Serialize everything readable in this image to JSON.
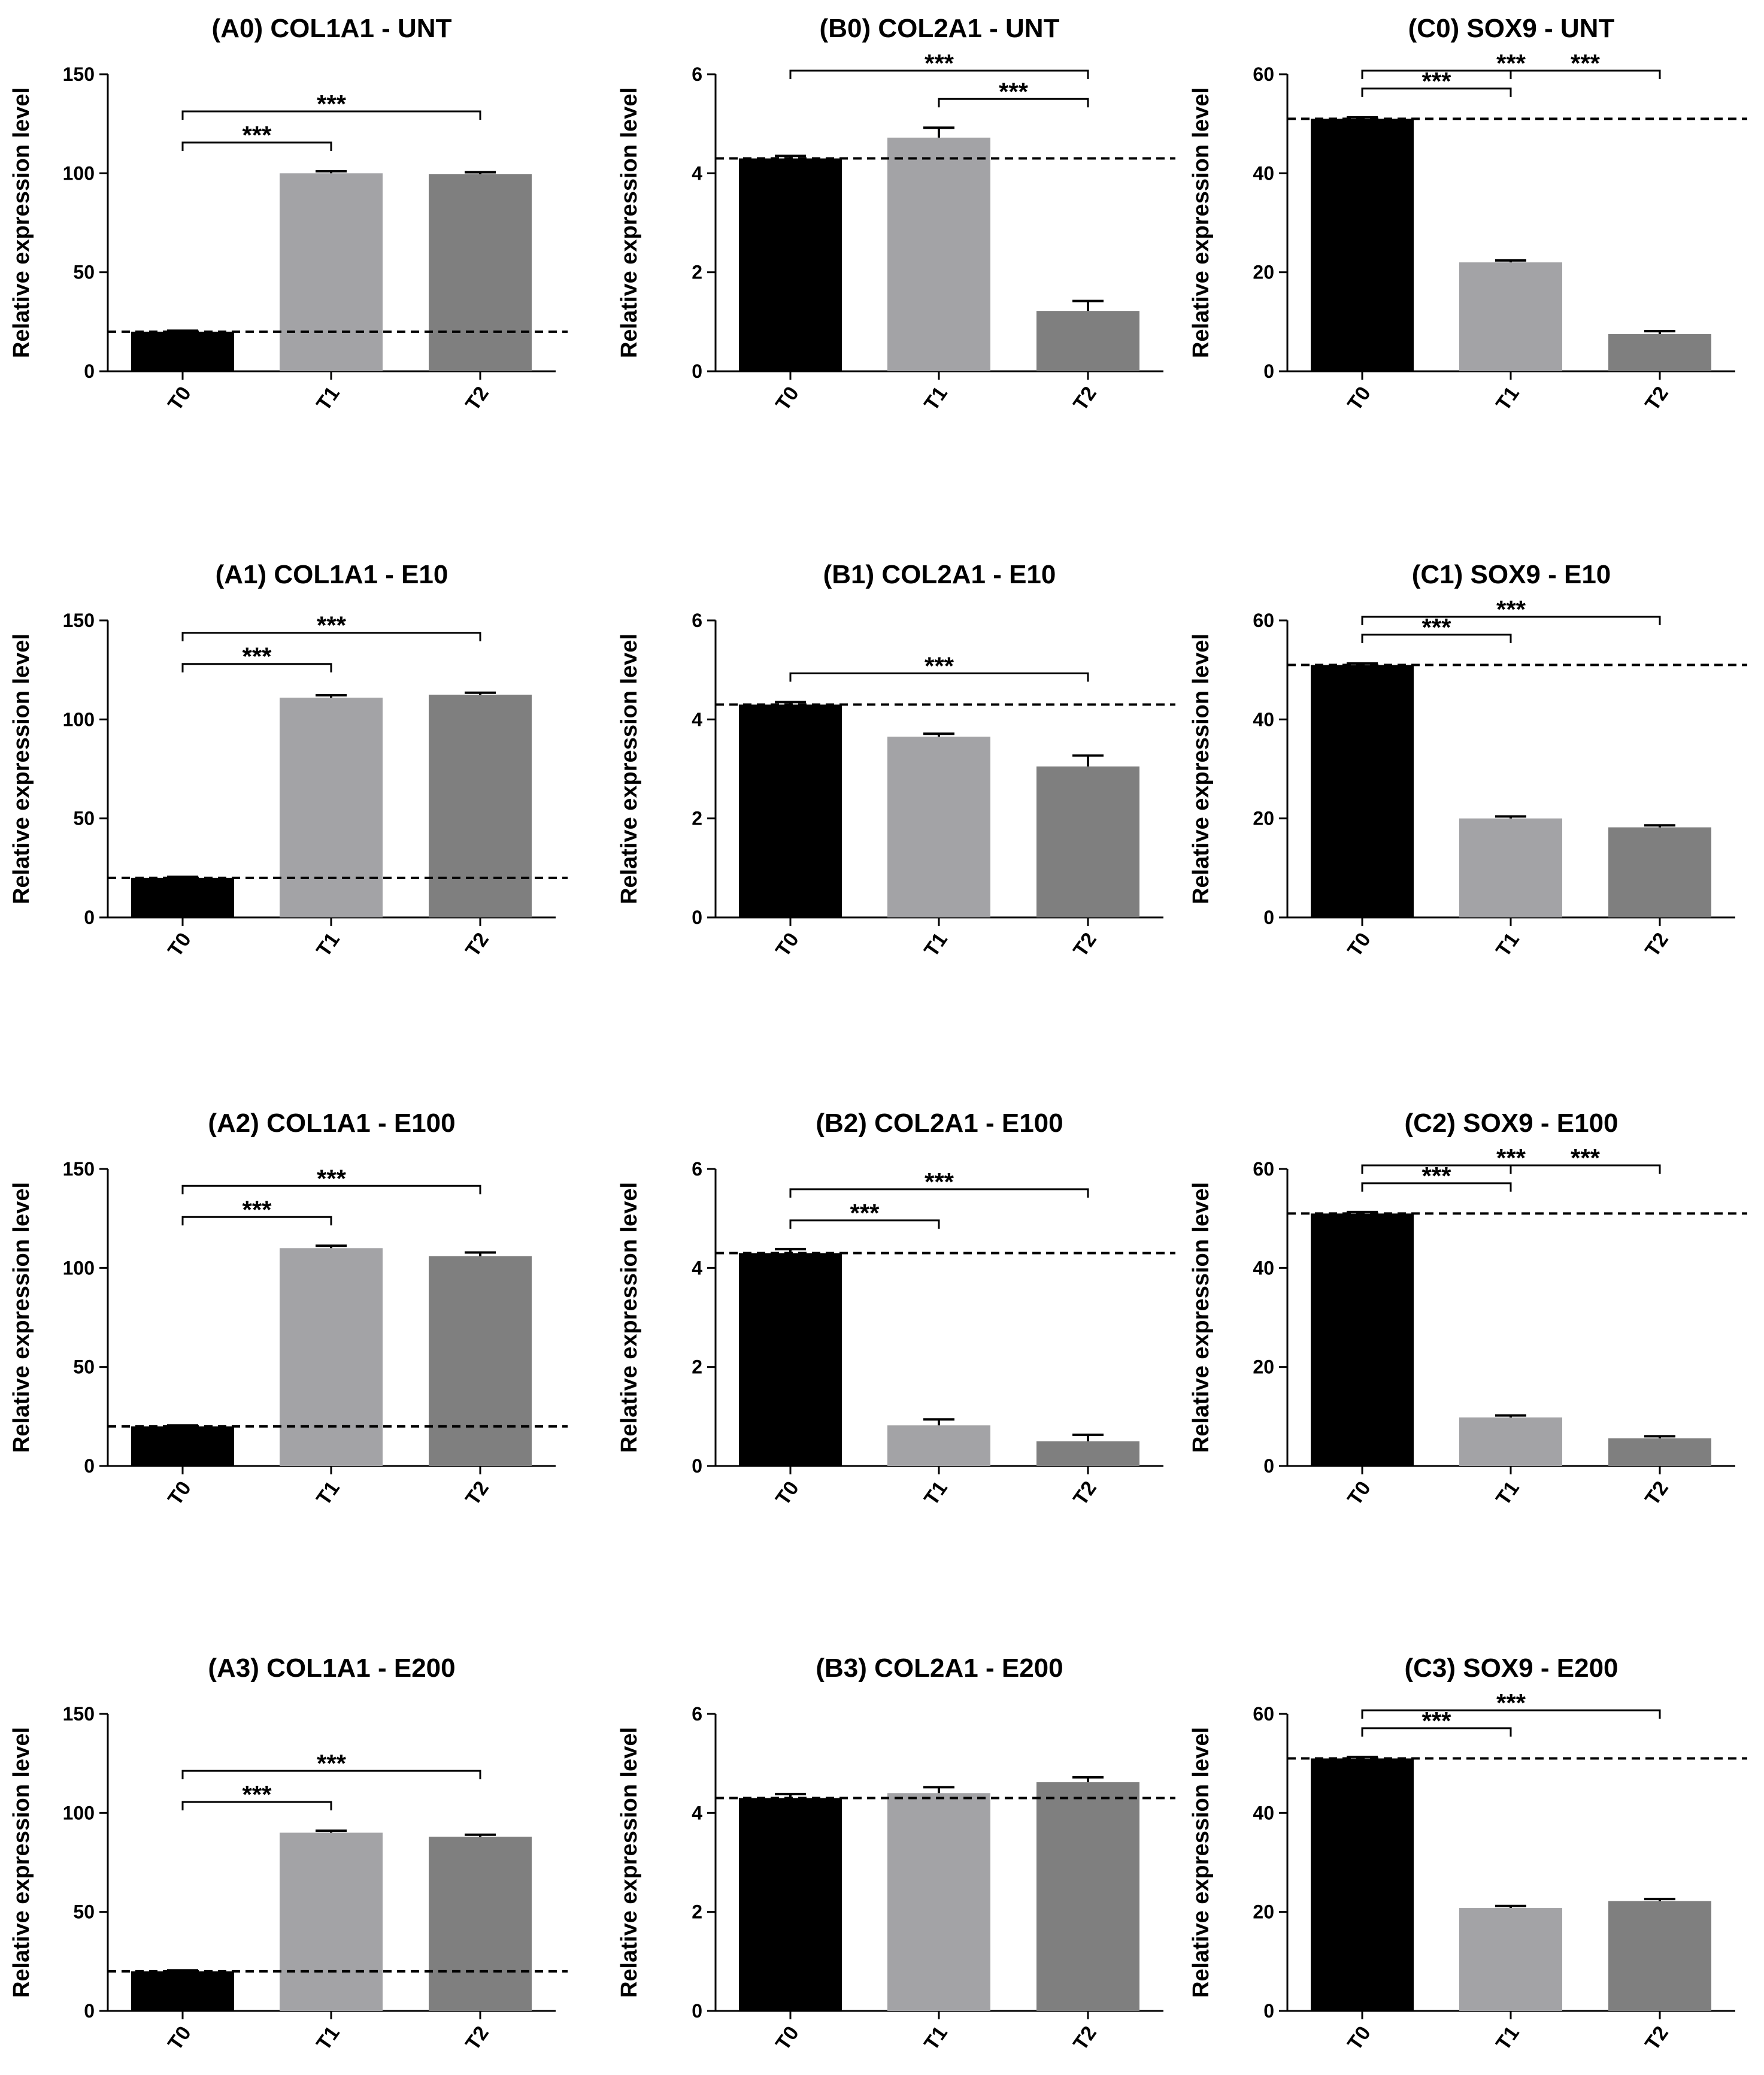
{
  "chart_data": [
    {
      "type": "bar",
      "title": "(A0) COL1A1 - UNT",
      "ylabel": "Relative expression level",
      "categories": [
        "T0",
        "T1",
        "T2"
      ],
      "values": [
        20,
        100,
        99.5
      ],
      "errors": [
        0.5,
        1,
        1
      ],
      "ylim": [
        0,
        150
      ],
      "yticks": [
        0,
        50,
        100,
        150
      ],
      "baseline": 20,
      "bar_colors": [
        "#000000",
        "#a3a3a6",
        "#7f7f7f"
      ],
      "significance": [
        {
          "from": 0,
          "to": 1,
          "label": "***"
        },
        {
          "from": 0,
          "to": 2,
          "label": "***"
        }
      ]
    },
    {
      "type": "bar",
      "title": "(B0) COL2A1 - UNT",
      "ylabel": "Relative expression level",
      "categories": [
        "T0",
        "T1",
        "T2"
      ],
      "values": [
        4.3,
        4.72,
        1.22
      ],
      "errors": [
        0.05,
        0.2,
        0.2
      ],
      "ylim": [
        0,
        6
      ],
      "yticks": [
        0,
        2,
        4,
        6
      ],
      "baseline": 4.3,
      "bar_colors": [
        "#000000",
        "#a3a3a6",
        "#7f7f7f"
      ],
      "significance": [
        {
          "from": 0,
          "to": 2,
          "label": "***"
        },
        {
          "from": 1,
          "to": 2,
          "label": "***"
        }
      ]
    },
    {
      "type": "bar",
      "title": "(C0) SOX9 - UNT",
      "ylabel": "Relative expression level",
      "categories": [
        "T0",
        "T1",
        "T2"
      ],
      "values": [
        51,
        22,
        7.5
      ],
      "errors": [
        0.3,
        0.4,
        0.6
      ],
      "ylim": [
        0,
        60
      ],
      "yticks": [
        0,
        20,
        40,
        60
      ],
      "baseline": 51,
      "bar_colors": [
        "#000000",
        "#a3a3a6",
        "#7f7f7f"
      ],
      "significance": [
        {
          "from": 0,
          "to": 1,
          "label": "***"
        },
        {
          "from": 0,
          "to": 2,
          "label": "***"
        },
        {
          "from": 1,
          "to": 2,
          "label": "***"
        }
      ]
    },
    {
      "type": "bar",
      "title": "(A1) COL1A1 - E10",
      "ylabel": "Relative expression level",
      "categories": [
        "T0",
        "T1",
        "T2"
      ],
      "values": [
        20,
        111,
        112.5
      ],
      "errors": [
        0.5,
        1.2,
        1
      ],
      "ylim": [
        0,
        150
      ],
      "yticks": [
        0,
        50,
        100,
        150
      ],
      "baseline": 20,
      "bar_colors": [
        "#000000",
        "#a3a3a6",
        "#7f7f7f"
      ],
      "significance": [
        {
          "from": 0,
          "to": 1,
          "label": "***"
        },
        {
          "from": 0,
          "to": 2,
          "label": "***"
        }
      ]
    },
    {
      "type": "bar",
      "title": "(B1) COL2A1 - E10",
      "ylabel": "Relative expression level",
      "categories": [
        "T0",
        "T1",
        "T2"
      ],
      "values": [
        4.3,
        3.65,
        3.05
      ],
      "errors": [
        0.05,
        0.06,
        0.22
      ],
      "ylim": [
        0,
        6
      ],
      "yticks": [
        0,
        2,
        4,
        6
      ],
      "baseline": 4.3,
      "bar_colors": [
        "#000000",
        "#a3a3a6",
        "#7f7f7f"
      ],
      "significance": [
        {
          "from": 0,
          "to": 2,
          "label": "***"
        }
      ]
    },
    {
      "type": "bar",
      "title": "(C1) SOX9 - E10",
      "ylabel": "Relative expression level",
      "categories": [
        "T0",
        "T1",
        "T2"
      ],
      "values": [
        51,
        20,
        18.2
      ],
      "errors": [
        0.3,
        0.4,
        0.4
      ],
      "ylim": [
        0,
        60
      ],
      "yticks": [
        0,
        20,
        40,
        60
      ],
      "baseline": 51,
      "bar_colors": [
        "#000000",
        "#a3a3a6",
        "#7f7f7f"
      ],
      "significance": [
        {
          "from": 0,
          "to": 1,
          "label": "***"
        },
        {
          "from": 0,
          "to": 2,
          "label": "***"
        }
      ]
    },
    {
      "type": "bar",
      "title": "(A2) COL1A1 - E100",
      "ylabel": "Relative expression level",
      "categories": [
        "T0",
        "T1",
        "T2"
      ],
      "values": [
        20,
        110,
        106
      ],
      "errors": [
        0.5,
        1.2,
        1.8
      ],
      "ylim": [
        0,
        150
      ],
      "yticks": [
        0,
        50,
        100,
        150
      ],
      "baseline": 20,
      "bar_colors": [
        "#000000",
        "#a3a3a6",
        "#7f7f7f"
      ],
      "significance": [
        {
          "from": 0,
          "to": 1,
          "label": "***"
        },
        {
          "from": 0,
          "to": 2,
          "label": "***"
        }
      ]
    },
    {
      "type": "bar",
      "title": "(B2) COL2A1 - E100",
      "ylabel": "Relative expression level",
      "categories": [
        "T0",
        "T1",
        "T2"
      ],
      "values": [
        4.3,
        0.82,
        0.5
      ],
      "errors": [
        0.08,
        0.12,
        0.13
      ],
      "ylim": [
        0,
        6
      ],
      "yticks": [
        0,
        2,
        4,
        6
      ],
      "baseline": 4.3,
      "bar_colors": [
        "#000000",
        "#a3a3a6",
        "#7f7f7f"
      ],
      "significance": [
        {
          "from": 0,
          "to": 1,
          "label": "***"
        },
        {
          "from": 0,
          "to": 2,
          "label": "***"
        }
      ]
    },
    {
      "type": "bar",
      "title": "(C2) SOX9 - E100",
      "ylabel": "Relative expression level",
      "categories": [
        "T0",
        "T1",
        "T2"
      ],
      "values": [
        51,
        9.8,
        5.6
      ],
      "errors": [
        0.3,
        0.4,
        0.4
      ],
      "ylim": [
        0,
        60
      ],
      "yticks": [
        0,
        20,
        40,
        60
      ],
      "baseline": 51,
      "bar_colors": [
        "#000000",
        "#a3a3a6",
        "#7f7f7f"
      ],
      "significance": [
        {
          "from": 0,
          "to": 1,
          "label": "***"
        },
        {
          "from": 0,
          "to": 2,
          "label": "***"
        },
        {
          "from": 1,
          "to": 2,
          "label": "***"
        }
      ]
    },
    {
      "type": "bar",
      "title": "(A3) COL1A1 - E200",
      "ylabel": "Relative expression level",
      "categories": [
        "T0",
        "T1",
        "T2"
      ],
      "values": [
        20,
        90,
        88
      ],
      "errors": [
        0.5,
        1,
        1
      ],
      "ylim": [
        0,
        150
      ],
      "yticks": [
        0,
        50,
        100,
        150
      ],
      "baseline": 20,
      "bar_colors": [
        "#000000",
        "#a3a3a6",
        "#7f7f7f"
      ],
      "significance": [
        {
          "from": 0,
          "to": 1,
          "label": "***"
        },
        {
          "from": 0,
          "to": 2,
          "label": "***"
        }
      ]
    },
    {
      "type": "bar",
      "title": "(B3) COL2A1 - E200",
      "ylabel": "Relative expression level",
      "categories": [
        "T0",
        "T1",
        "T2"
      ],
      "values": [
        4.3,
        4.4,
        4.62
      ],
      "errors": [
        0.08,
        0.12,
        0.1
      ],
      "ylim": [
        0,
        6
      ],
      "yticks": [
        0,
        2,
        4,
        6
      ],
      "baseline": 4.3,
      "bar_colors": [
        "#000000",
        "#a3a3a6",
        "#7f7f7f"
      ],
      "significance": []
    },
    {
      "type": "bar",
      "title": "(C3) SOX9 - E200",
      "ylabel": "Relative expression level",
      "categories": [
        "T0",
        "T1",
        "T2"
      ],
      "values": [
        51,
        20.8,
        22.2
      ],
      "errors": [
        0.3,
        0.4,
        0.4
      ],
      "ylim": [
        0,
        60
      ],
      "yticks": [
        0,
        20,
        40,
        60
      ],
      "baseline": 51,
      "bar_colors": [
        "#000000",
        "#a3a3a6",
        "#7f7f7f"
      ],
      "significance": [
        {
          "from": 0,
          "to": 1,
          "label": "***"
        },
        {
          "from": 0,
          "to": 2,
          "label": "***"
        }
      ]
    }
  ]
}
